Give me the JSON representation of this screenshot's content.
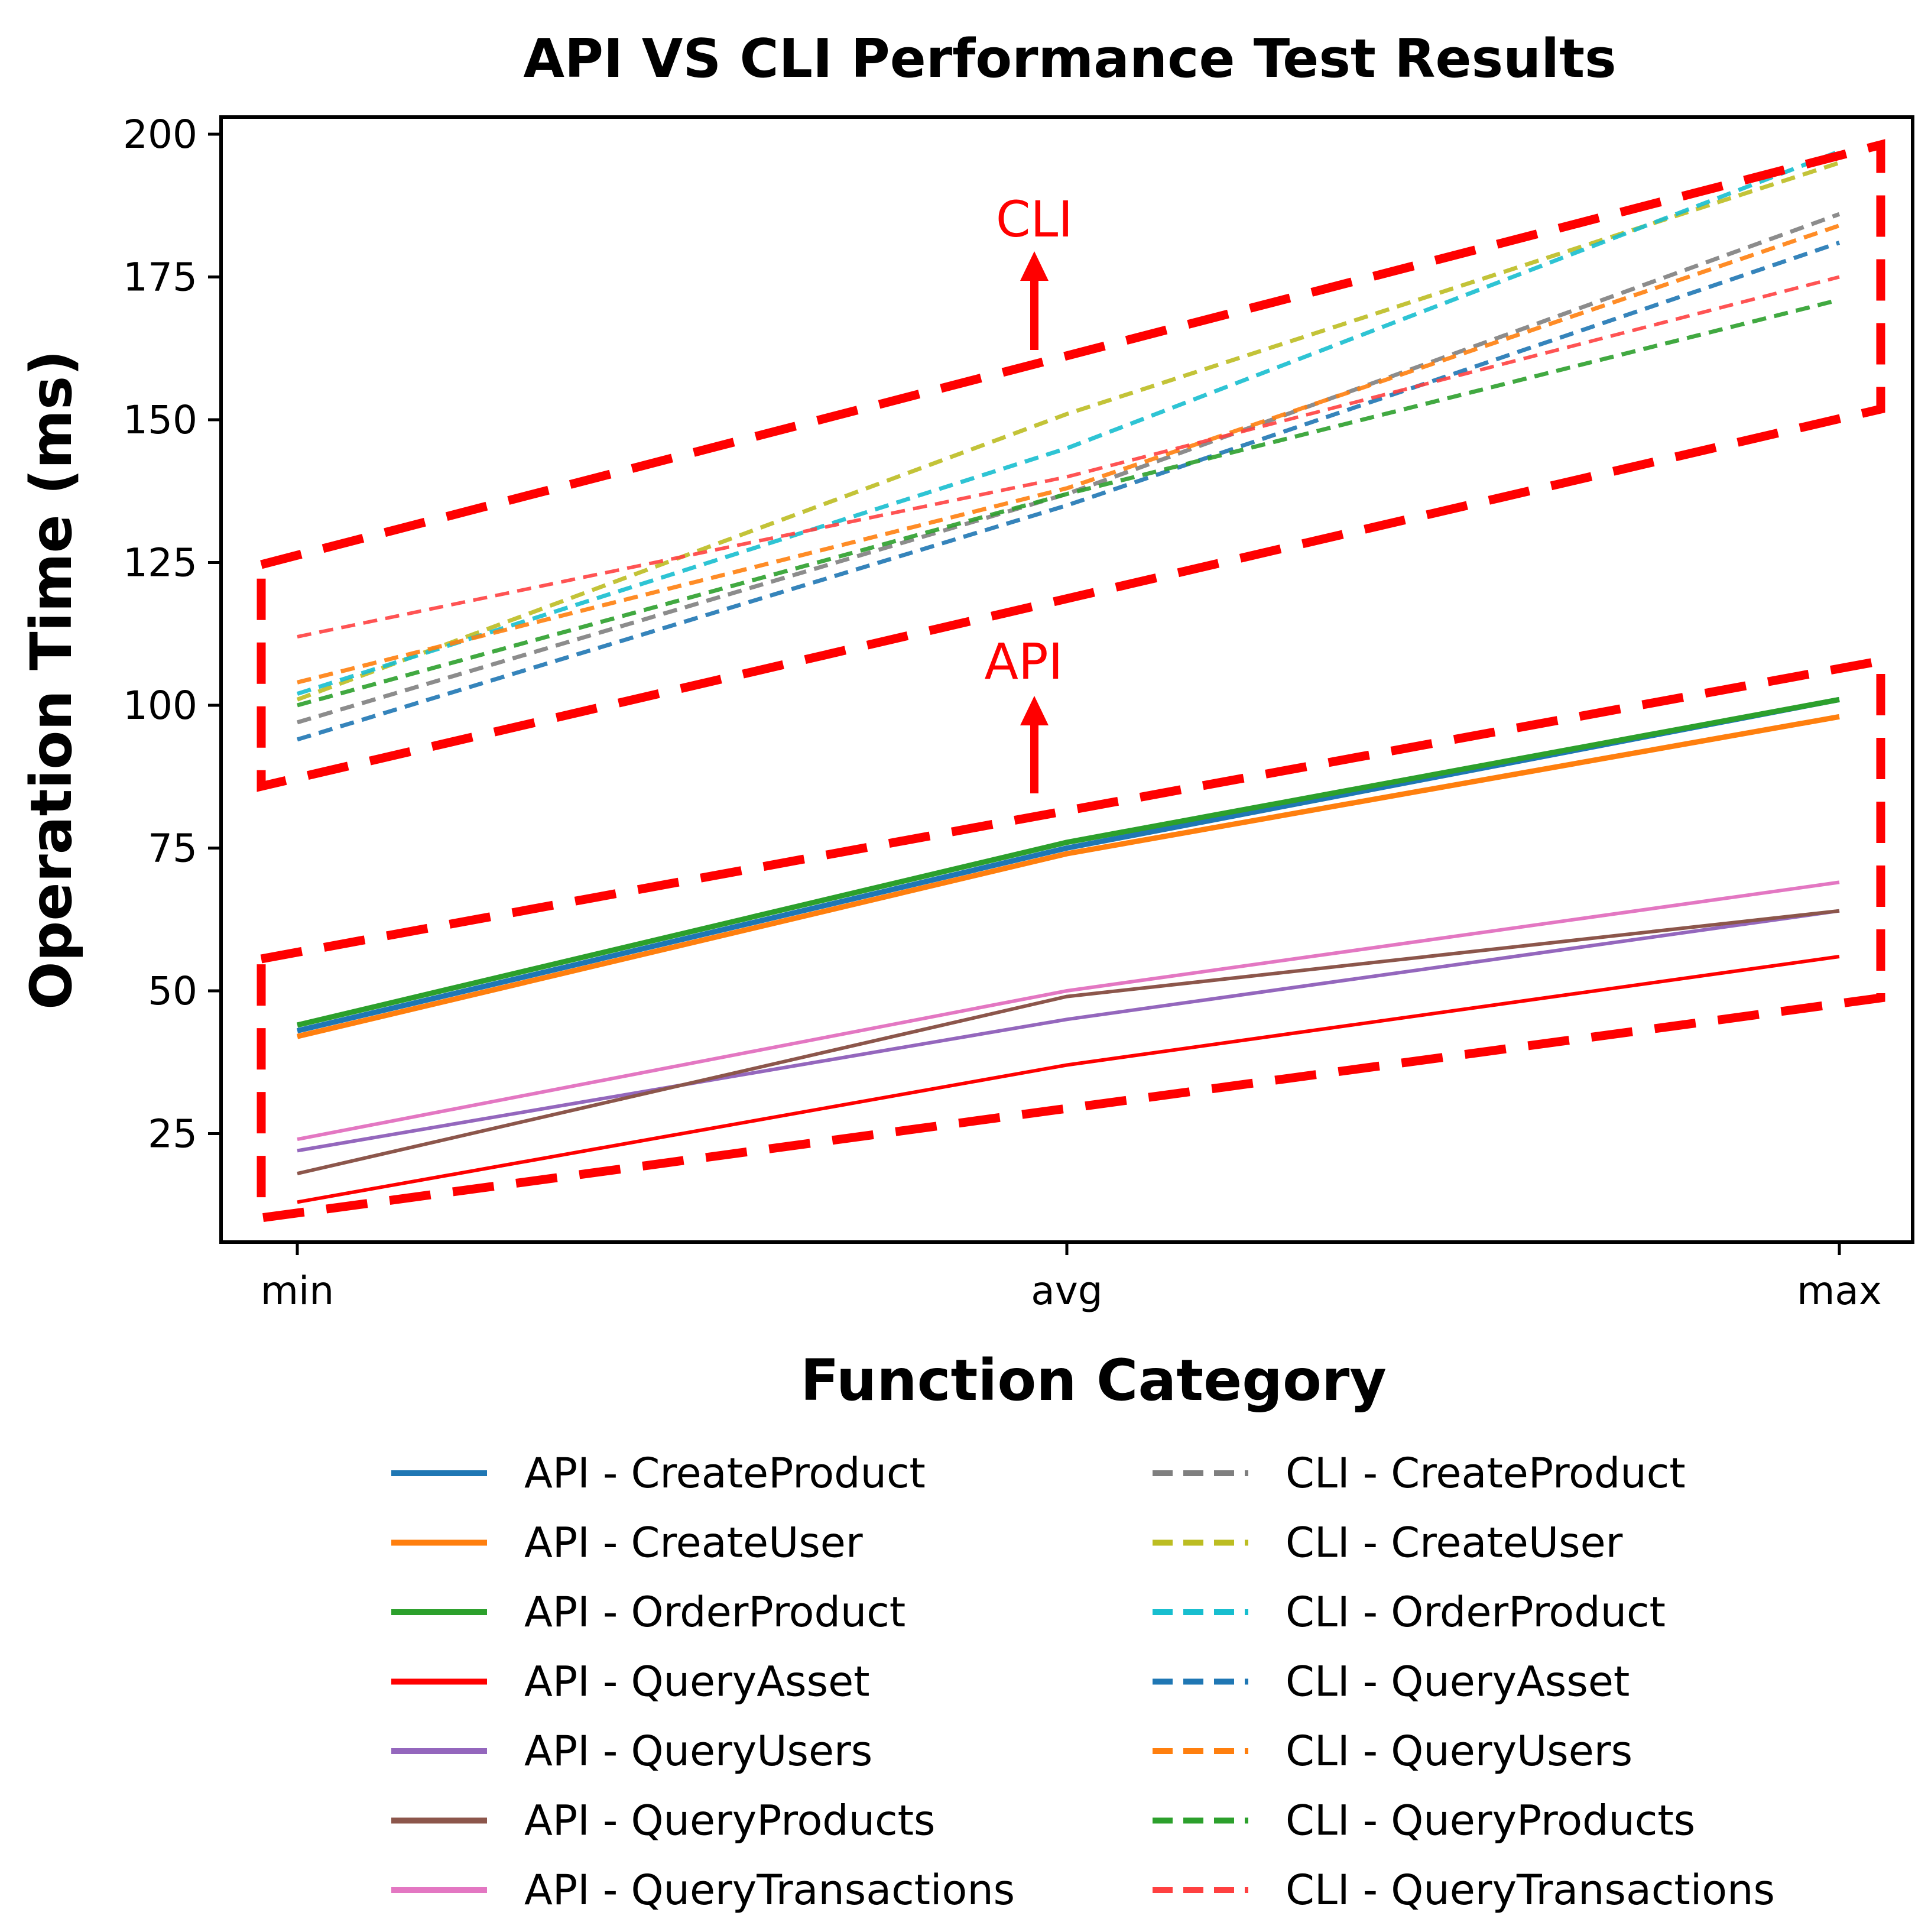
{
  "chart_data": {
    "type": "line",
    "title": "API VS CLI Performance Test Results",
    "xlabel": "Function Category",
    "ylabel": "Operation Time (ms)",
    "categories": [
      "min",
      "avg",
      "max"
    ],
    "ylim": [
      6,
      203
    ],
    "yticks": [
      25,
      50,
      75,
      100,
      125,
      150,
      175,
      200
    ],
    "grid": false,
    "legend_position": "bottom",
    "series": [
      {
        "name": "API - CreateProduct",
        "values": [
          43,
          75,
          101
        ],
        "color": "#1f77b4",
        "style": "solid"
      },
      {
        "name": "API - CreateUser",
        "values": [
          42,
          74,
          98
        ],
        "color": "#ff7f0e",
        "style": "solid"
      },
      {
        "name": "API - OrderProduct",
        "values": [
          44,
          76,
          101
        ],
        "color": "#2ca02c",
        "style": "solid"
      },
      {
        "name": "API - QueryAsset",
        "values": [
          13,
          37,
          56
        ],
        "color": "#ff0000",
        "style": "solid"
      },
      {
        "name": "API - QueryUsers",
        "values": [
          22,
          45,
          64
        ],
        "color": "#9467bd",
        "style": "solid"
      },
      {
        "name": "API - QueryProducts",
        "values": [
          18,
          49,
          64
        ],
        "color": "#8c564b",
        "style": "solid"
      },
      {
        "name": "API - QueryTransactions",
        "values": [
          24,
          50,
          69
        ],
        "color": "#e377c2",
        "style": "solid"
      },
      {
        "name": "CLI - CreateProduct",
        "values": [
          97,
          137,
          186
        ],
        "color": "#7f7f7f",
        "style": "dashed"
      },
      {
        "name": "CLI - CreateUser",
        "values": [
          101,
          151,
          195
        ],
        "color": "#bcbd22",
        "style": "dashed"
      },
      {
        "name": "CLI - OrderProduct",
        "values": [
          102,
          145,
          197
        ],
        "color": "#17becf",
        "style": "dashed"
      },
      {
        "name": "CLI - QueryAsset",
        "values": [
          94,
          135,
          181
        ],
        "color": "#1f77b4",
        "style": "dashed"
      },
      {
        "name": "CLI - QueryUsers",
        "values": [
          104,
          138,
          184
        ],
        "color": "#ff7f0e",
        "style": "dashed"
      },
      {
        "name": "CLI - QueryProducts",
        "values": [
          100,
          137,
          171
        ],
        "color": "#2ca02c",
        "style": "dashed"
      },
      {
        "name": "CLI - QueryTransactions",
        "values": [
          112,
          140,
          175
        ],
        "color": "#ff4040",
        "style": "dashed"
      }
    ],
    "annotations": [
      {
        "text": "CLI",
        "color": "#ff0000"
      },
      {
        "text": "API",
        "color": "#ff0000"
      }
    ]
  }
}
